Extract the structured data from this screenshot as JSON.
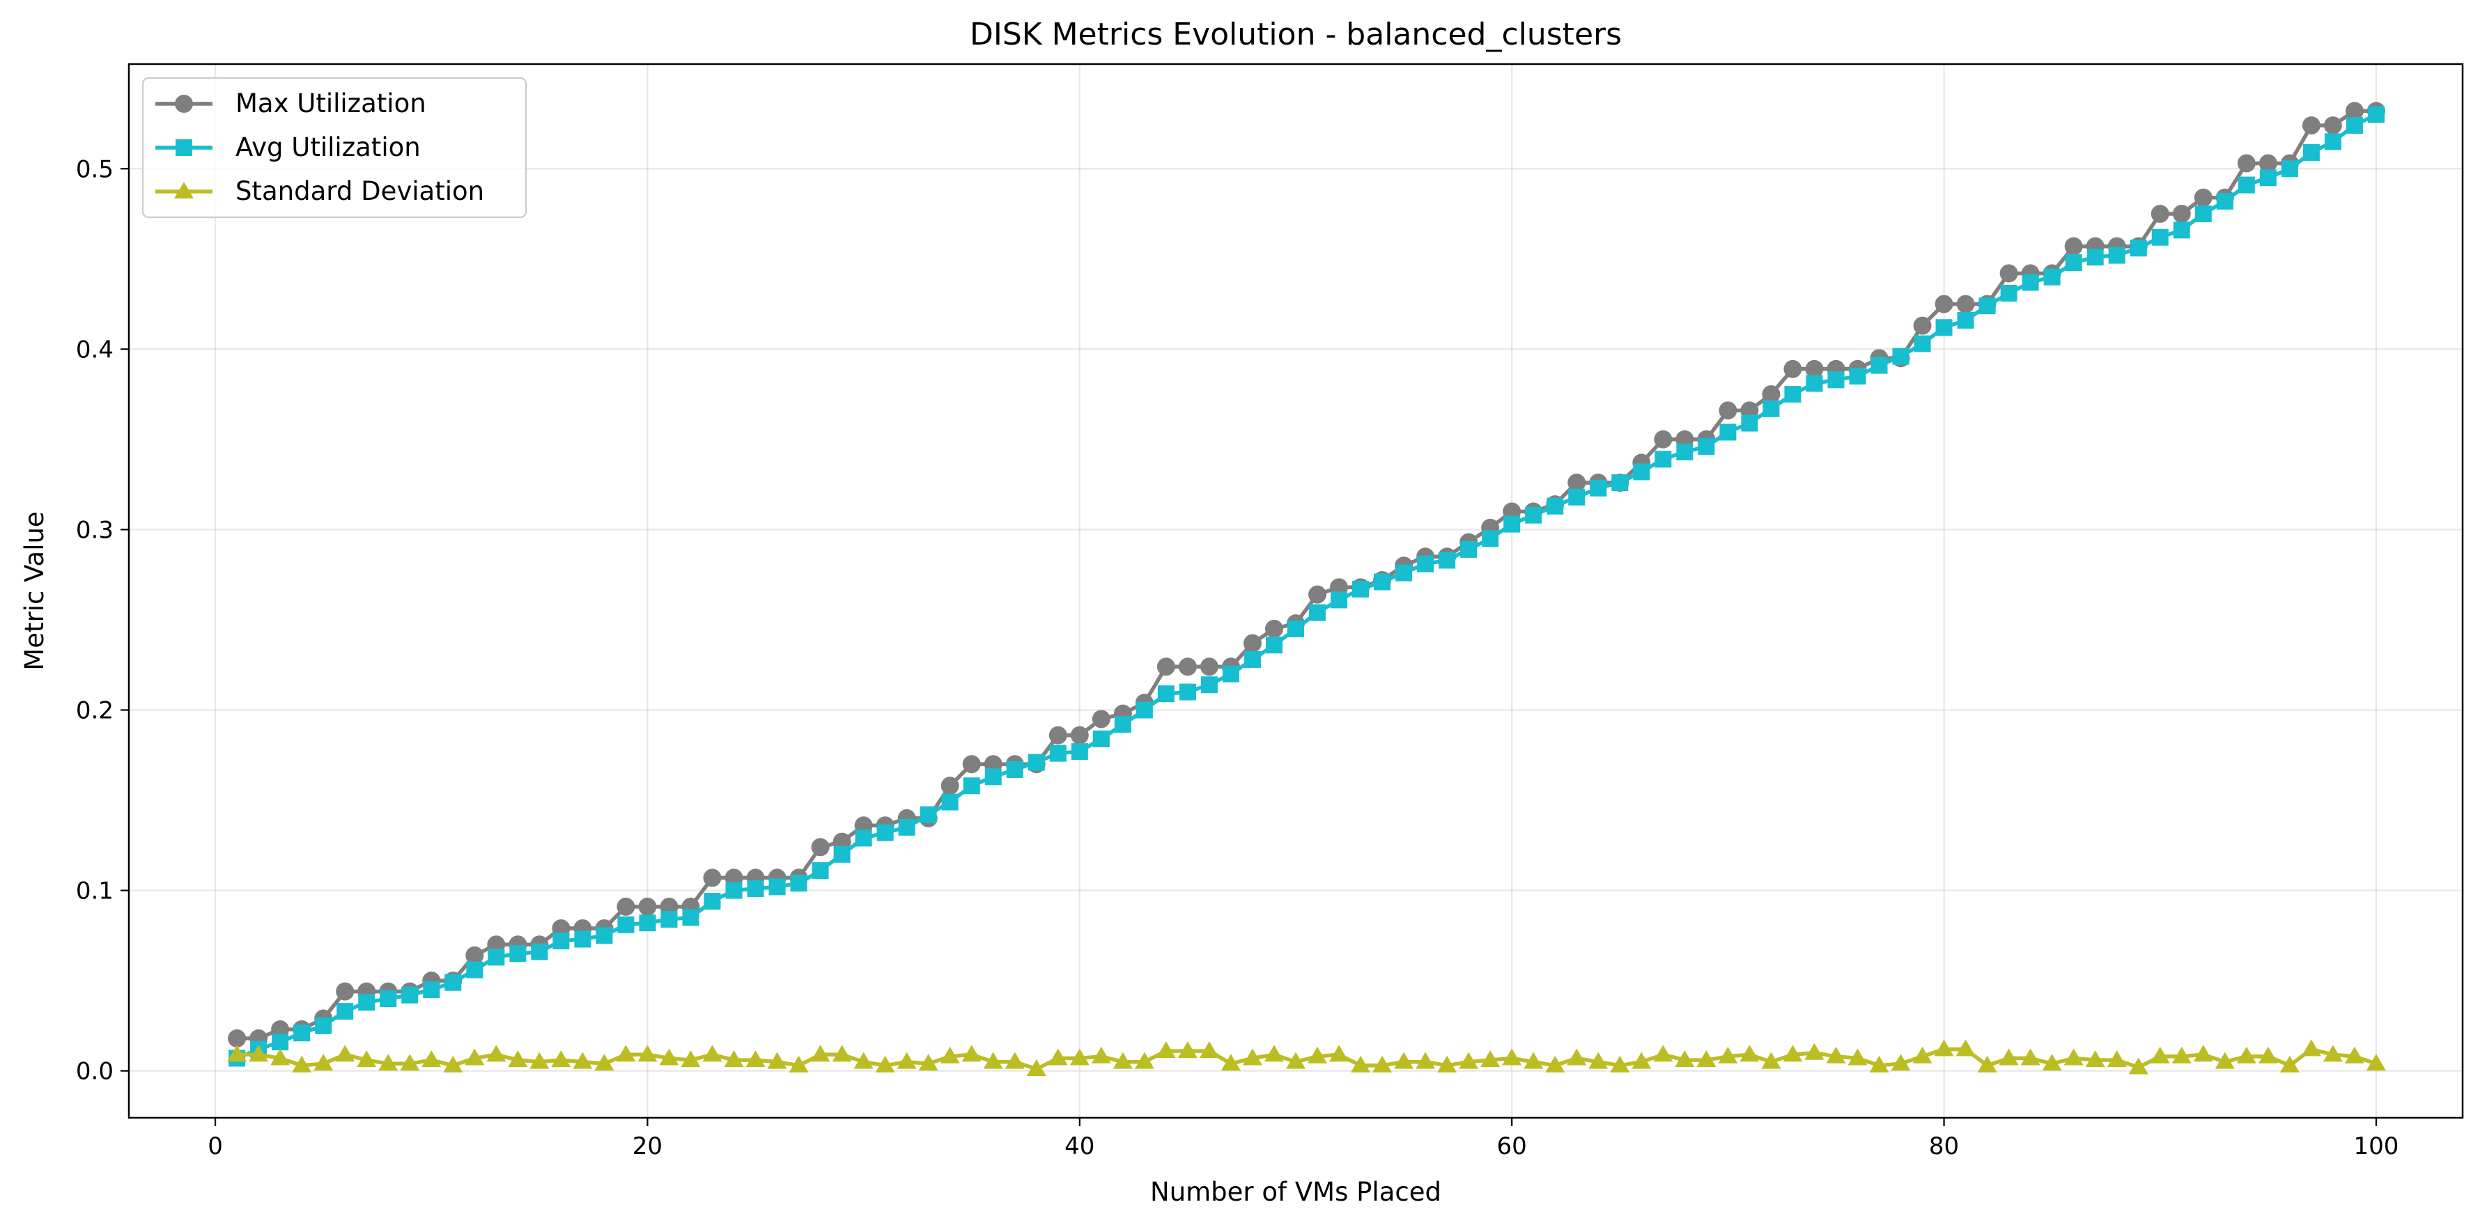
{
  "chart_data": {
    "type": "line",
    "title": "DISK Metrics Evolution - balanced_clusters",
    "xlabel": "Number of VMs Placed",
    "ylabel": "Metric Value",
    "xlim": [
      -4,
      104
    ],
    "ylim": [
      -0.026,
      0.558
    ],
    "xticks": [
      0,
      20,
      40,
      60,
      80,
      100
    ],
    "yticks": [
      0.0,
      0.1,
      0.2,
      0.3,
      0.4,
      0.5
    ],
    "xtick_labels": [
      "0",
      "20",
      "40",
      "60",
      "80",
      "100"
    ],
    "ytick_labels": [
      "0.0",
      "0.1",
      "0.2",
      "0.3",
      "0.4",
      "0.5"
    ],
    "grid": true,
    "legend_position": "upper-left",
    "x": [
      1,
      2,
      3,
      4,
      5,
      6,
      7,
      8,
      9,
      10,
      11,
      12,
      13,
      14,
      15,
      16,
      17,
      18,
      19,
      20,
      21,
      22,
      23,
      24,
      25,
      26,
      27,
      28,
      29,
      30,
      31,
      32,
      33,
      34,
      35,
      36,
      37,
      38,
      39,
      40,
      41,
      42,
      43,
      44,
      45,
      46,
      47,
      48,
      49,
      50,
      51,
      52,
      53,
      54,
      55,
      56,
      57,
      58,
      59,
      60,
      61,
      62,
      63,
      64,
      65,
      66,
      67,
      68,
      69,
      70,
      71,
      72,
      73,
      74,
      75,
      76,
      77,
      78,
      79,
      80,
      81,
      82,
      83,
      84,
      85,
      86,
      87,
      88,
      89,
      90,
      91,
      92,
      93,
      94,
      95,
      96,
      97,
      98,
      99,
      100
    ],
    "series": [
      {
        "name": "Max Utilization",
        "color": "#7f7f7f",
        "marker": "circle",
        "values": [
          0.018,
          0.018,
          0.023,
          0.023,
          0.029,
          0.044,
          0.044,
          0.044,
          0.044,
          0.05,
          0.05,
          0.064,
          0.07,
          0.07,
          0.07,
          0.079,
          0.079,
          0.079,
          0.091,
          0.091,
          0.091,
          0.091,
          0.107,
          0.107,
          0.107,
          0.107,
          0.107,
          0.124,
          0.127,
          0.136,
          0.136,
          0.14,
          0.14,
          0.158,
          0.17,
          0.17,
          0.17,
          0.17,
          0.186,
          0.186,
          0.195,
          0.198,
          0.204,
          0.224,
          0.224,
          0.224,
          0.224,
          0.237,
          0.245,
          0.248,
          0.264,
          0.268,
          0.268,
          0.272,
          0.28,
          0.285,
          0.285,
          0.293,
          0.301,
          0.31,
          0.31,
          0.314,
          0.326,
          0.326,
          0.326,
          0.337,
          0.35,
          0.35,
          0.35,
          0.366,
          0.366,
          0.375,
          0.389,
          0.389,
          0.389,
          0.389,
          0.395,
          0.395,
          0.413,
          0.425,
          0.425,
          0.425,
          0.442,
          0.442,
          0.442,
          0.457,
          0.457,
          0.457,
          0.457,
          0.475,
          0.475,
          0.484,
          0.484,
          0.503,
          0.503,
          0.503,
          0.524,
          0.524,
          0.532,
          0.532
        ]
      },
      {
        "name": "Avg Utilization",
        "color": "#17becf",
        "marker": "square",
        "values": [
          0.007,
          0.012,
          0.016,
          0.021,
          0.025,
          0.033,
          0.038,
          0.04,
          0.042,
          0.045,
          0.049,
          0.056,
          0.063,
          0.065,
          0.066,
          0.072,
          0.073,
          0.075,
          0.081,
          0.082,
          0.084,
          0.085,
          0.094,
          0.1,
          0.101,
          0.102,
          0.104,
          0.111,
          0.12,
          0.129,
          0.132,
          0.135,
          0.142,
          0.149,
          0.158,
          0.163,
          0.167,
          0.171,
          0.176,
          0.177,
          0.184,
          0.192,
          0.2,
          0.209,
          0.21,
          0.214,
          0.22,
          0.228,
          0.236,
          0.245,
          0.254,
          0.261,
          0.267,
          0.271,
          0.276,
          0.281,
          0.283,
          0.289,
          0.295,
          0.303,
          0.308,
          0.313,
          0.318,
          0.323,
          0.326,
          0.332,
          0.339,
          0.343,
          0.346,
          0.354,
          0.359,
          0.367,
          0.375,
          0.381,
          0.383,
          0.385,
          0.391,
          0.396,
          0.403,
          0.412,
          0.416,
          0.424,
          0.431,
          0.437,
          0.44,
          0.448,
          0.451,
          0.452,
          0.456,
          0.462,
          0.466,
          0.475,
          0.482,
          0.491,
          0.495,
          0.5,
          0.509,
          0.515,
          0.524,
          0.53
        ]
      },
      {
        "name": "Standard Deviation",
        "color": "#bcbd22",
        "marker": "triangle",
        "values": [
          0.009,
          0.009,
          0.007,
          0.003,
          0.004,
          0.009,
          0.006,
          0.004,
          0.004,
          0.006,
          0.003,
          0.007,
          0.009,
          0.006,
          0.005,
          0.006,
          0.005,
          0.004,
          0.009,
          0.009,
          0.007,
          0.006,
          0.009,
          0.006,
          0.006,
          0.005,
          0.003,
          0.009,
          0.009,
          0.005,
          0.003,
          0.005,
          0.004,
          0.008,
          0.009,
          0.005,
          0.005,
          0.001,
          0.007,
          0.007,
          0.008,
          0.005,
          0.005,
          0.011,
          0.011,
          0.011,
          0.004,
          0.007,
          0.009,
          0.005,
          0.008,
          0.009,
          0.003,
          0.003,
          0.005,
          0.005,
          0.003,
          0.005,
          0.006,
          0.007,
          0.005,
          0.003,
          0.007,
          0.005,
          0.003,
          0.005,
          0.009,
          0.006,
          0.006,
          0.008,
          0.009,
          0.005,
          0.009,
          0.01,
          0.008,
          0.007,
          0.003,
          0.004,
          0.008,
          0.012,
          0.012,
          0.003,
          0.007,
          0.007,
          0.004,
          0.007,
          0.006,
          0.006,
          0.002,
          0.008,
          0.008,
          0.009,
          0.005,
          0.008,
          0.008,
          0.003,
          0.012,
          0.009,
          0.008,
          0.004
        ]
      }
    ]
  }
}
